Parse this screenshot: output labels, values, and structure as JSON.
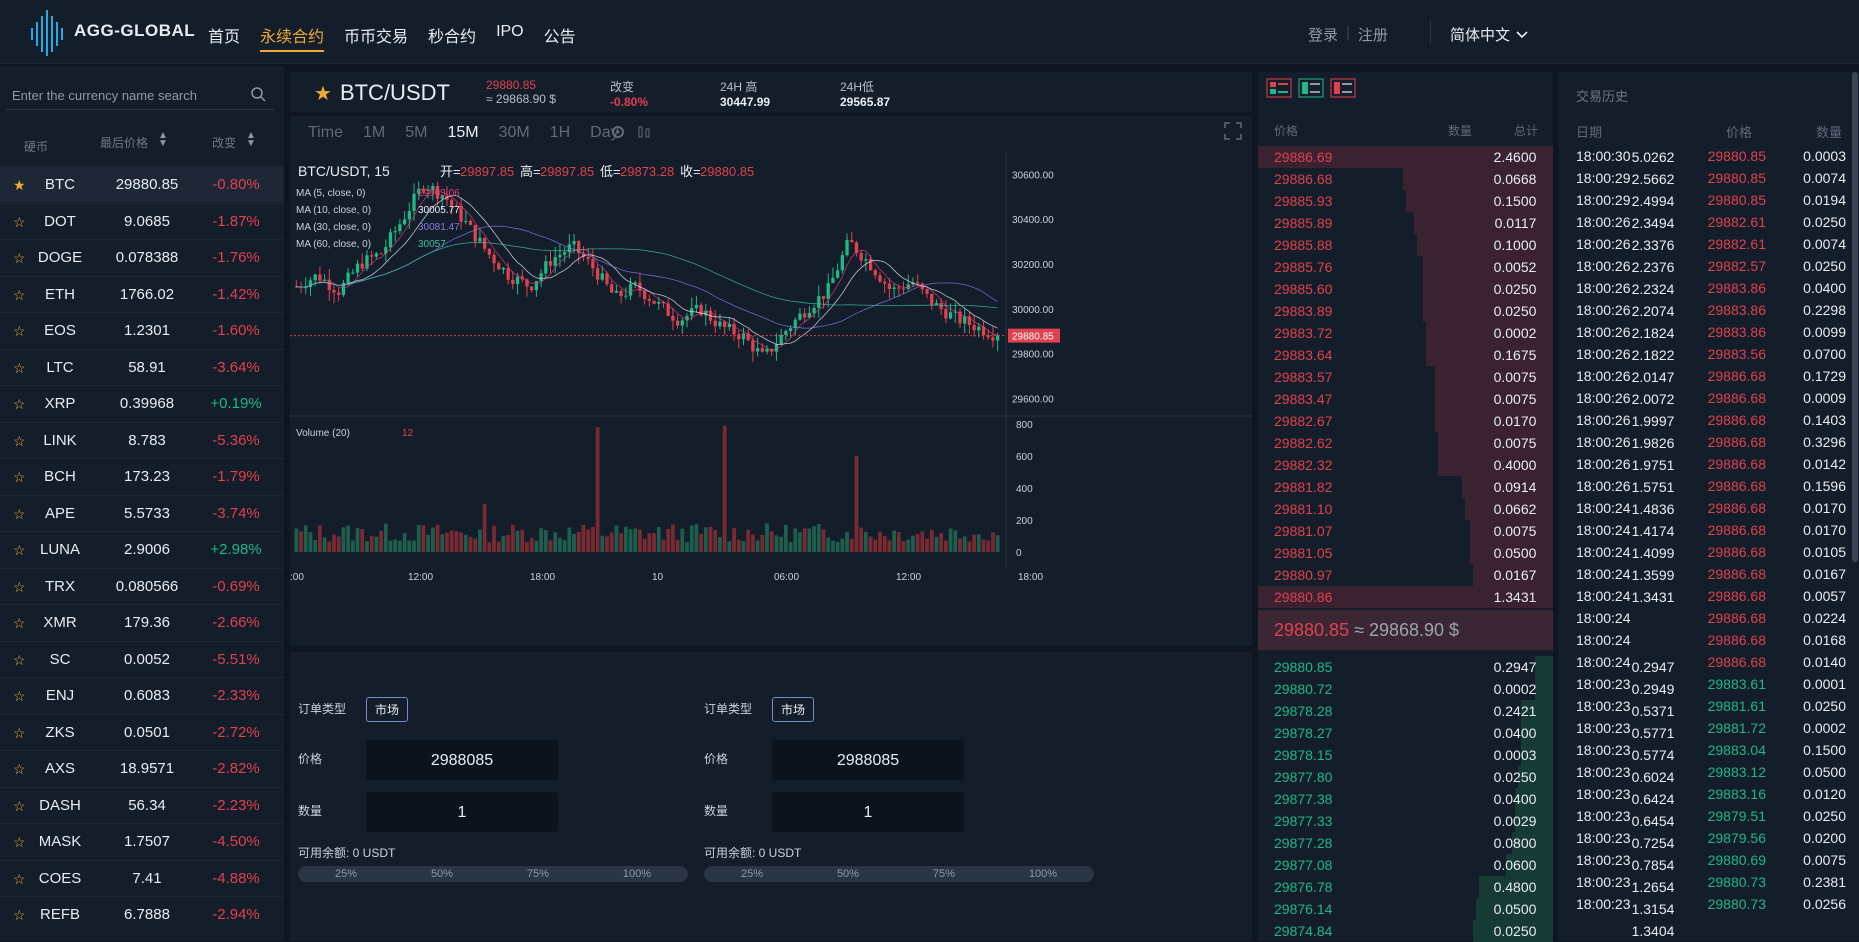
{
  "brand": {
    "name": "AGG-GLOBAL"
  },
  "nav": {
    "items": [
      "首页",
      "永续合约",
      "币币交易",
      "秒合约",
      "IPO",
      "公告"
    ],
    "active": 1
  },
  "auth": {
    "login": "登录",
    "register": "注册",
    "sep": "|"
  },
  "language": {
    "label": "简体中文"
  },
  "market": {
    "search_placeholder": "Enter the currency name search",
    "headers": {
      "coin": "硬币",
      "last_price": "最后价格",
      "change": "改变"
    },
    "rows": [
      {
        "sym": "BTC",
        "price": "29880.85",
        "change": "-0.80%"
      },
      {
        "sym": "DOT",
        "price": "9.0685",
        "change": "-1.87%"
      },
      {
        "sym": "DOGE",
        "price": "0.078388",
        "change": "-1.76%"
      },
      {
        "sym": "ETH",
        "price": "1766.02",
        "change": "-1.42%"
      },
      {
        "sym": "EOS",
        "price": "1.2301",
        "change": "-1.60%"
      },
      {
        "sym": "LTC",
        "price": "58.91",
        "change": "-3.64%"
      },
      {
        "sym": "XRP",
        "price": "0.39968",
        "change": "+0.19%"
      },
      {
        "sym": "LINK",
        "price": "8.783",
        "change": "-5.36%"
      },
      {
        "sym": "BCH",
        "price": "173.23",
        "change": "-1.79%"
      },
      {
        "sym": "APE",
        "price": "5.5733",
        "change": "-3.74%"
      },
      {
        "sym": "LUNA",
        "price": "2.9006",
        "change": "+2.98%"
      },
      {
        "sym": "TRX",
        "price": "0.080566",
        "change": "-0.69%"
      },
      {
        "sym": "XMR",
        "price": "179.36",
        "change": "-2.66%"
      },
      {
        "sym": "SC",
        "price": "0.0052",
        "change": "-5.51%"
      },
      {
        "sym": "ENJ",
        "price": "0.6083",
        "change": "-2.33%"
      },
      {
        "sym": "ZKS",
        "price": "0.0501",
        "change": "-2.72%"
      },
      {
        "sym": "AXS",
        "price": "18.9571",
        "change": "-2.82%"
      },
      {
        "sym": "DASH",
        "price": "56.34",
        "change": "-2.23%"
      },
      {
        "sym": "MASK",
        "price": "1.7507",
        "change": "-4.50%"
      },
      {
        "sym": "COES",
        "price": "7.41",
        "change": "-4.88%"
      },
      {
        "sym": "REFB",
        "price": "6.7888",
        "change": "-2.94%"
      }
    ]
  },
  "ticker": {
    "pair": "BTC/USDT",
    "last": "29880.85",
    "last_usd": "≈ 29868.90 $",
    "change_label": "改变",
    "change": "-0.80%",
    "high_label": "24H 高",
    "high": "30447.99",
    "low_label": "24H低",
    "low": "29565.87"
  },
  "chart": {
    "timeframes": [
      "Time",
      "1M",
      "5M",
      "15M",
      "30M",
      "1H",
      "Day"
    ],
    "active_tf": "15M",
    "legend_title": "BTC/USDT, 15",
    "ohlc": {
      "o_label": "开=",
      "o": "29897.85",
      "h_label": "高=",
      "h": "29897.85",
      "l_label": "低=",
      "l": "29873.28",
      "c_label": "收=",
      "c": "29880.85"
    },
    "ma": [
      {
        "label": "MA (5, close, 0)",
        "value": "29963.06",
        "color": "#e0417a"
      },
      {
        "label": "MA (10, close, 0)",
        "value": "30005.77",
        "color": "#e8edf3"
      },
      {
        "label": "MA (30, close, 0)",
        "value": "30081.47",
        "color": "#8c7ae6"
      },
      {
        "label": "MA (60, close, 0)",
        "value": "30057.",
        "color": "#3fbfa8"
      }
    ],
    "price_ticks": [
      "30600.00",
      "30400.00",
      "30200.00",
      "30000.00",
      "29800.00",
      "29600.00"
    ],
    "last_tag": "29880.85",
    "volume_label": "Volume (20)",
    "volume_value": "12",
    "volume_ticks": [
      "800",
      "600",
      "400",
      "200",
      "0"
    ],
    "time_ticks": [
      ":00",
      "12:00",
      "18:00",
      "10",
      "06:00",
      "12:00",
      "18:00"
    ]
  },
  "chart_data": {
    "type": "candlestick",
    "title": "BTC/USDT, 15",
    "ylim": [
      29540,
      30700
    ],
    "last_price": 29880.85,
    "volume_ylim": [
      0,
      800
    ]
  },
  "order": {
    "left": {
      "type_label": "订单类型",
      "type": "市场",
      "price_label": "价格",
      "price": "2988085",
      "qty_label": "数量",
      "qty": "1",
      "balance": "可用余额: 0 USDT"
    },
    "right": {
      "type_label": "订单类型",
      "type": "市场",
      "price_label": "价格",
      "price": "2988085",
      "qty_label": "数量",
      "qty": "1",
      "balance": "可用余额: 0 USDT"
    },
    "pcts": [
      "25%",
      "50%",
      "75%",
      "100%"
    ]
  },
  "book": {
    "headers": {
      "price": "价格",
      "qty": "数量",
      "total": "总计"
    },
    "asks": [
      {
        "p": "29886.69",
        "q": "2.4600",
        "t": "5.0262",
        "d": 1.0
      },
      {
        "p": "29886.68",
        "q": "0.0668",
        "t": "2.5662",
        "d": 0.51
      },
      {
        "p": "29885.93",
        "q": "0.1500",
        "t": "2.4994",
        "d": 0.5
      },
      {
        "p": "29885.89",
        "q": "0.0117",
        "t": "2.3494",
        "d": 0.47
      },
      {
        "p": "29885.88",
        "q": "0.1000",
        "t": "2.3376",
        "d": 0.46
      },
      {
        "p": "29885.76",
        "q": "0.0052",
        "t": "2.2376",
        "d": 0.44
      },
      {
        "p": "29885.60",
        "q": "0.0250",
        "t": "2.2324",
        "d": 0.44
      },
      {
        "p": "29883.89",
        "q": "0.0250",
        "t": "2.2074",
        "d": 0.44
      },
      {
        "p": "29883.72",
        "q": "0.0002",
        "t": "2.1824",
        "d": 0.43
      },
      {
        "p": "29883.64",
        "q": "0.1675",
        "t": "2.1822",
        "d": 0.43
      },
      {
        "p": "29883.57",
        "q": "0.0075",
        "t": "2.0147",
        "d": 0.4
      },
      {
        "p": "29883.47",
        "q": "0.0075",
        "t": "2.0072",
        "d": 0.4
      },
      {
        "p": "29882.67",
        "q": "0.0170",
        "t": "1.9997",
        "d": 0.4
      },
      {
        "p": "29882.62",
        "q": "0.0075",
        "t": "1.9826",
        "d": 0.39
      },
      {
        "p": "29882.32",
        "q": "0.4000",
        "t": "1.9751",
        "d": 0.39
      },
      {
        "p": "29881.82",
        "q": "0.0914",
        "t": "1.5751",
        "d": 0.31
      },
      {
        "p": "29881.10",
        "q": "0.0662",
        "t": "1.4836",
        "d": 0.3
      },
      {
        "p": "29881.07",
        "q": "0.0075",
        "t": "1.4174",
        "d": 0.28
      },
      {
        "p": "29881.05",
        "q": "0.0500",
        "t": "1.4099",
        "d": 0.28
      },
      {
        "p": "29880.97",
        "q": "0.0167",
        "t": "1.3599",
        "d": 0.27
      },
      {
        "p": "29880.86",
        "q": "1.3431",
        "t": "1.3431",
        "d": 1.0
      }
    ],
    "mid_price": "29880.85",
    "mid_usd": "≈ 29868.90 $",
    "bids": [
      {
        "p": "29880.85",
        "q": "0.2947",
        "t": "0.2947",
        "d": 0.06
      },
      {
        "p": "29880.72",
        "q": "0.0002",
        "t": "0.2949",
        "d": 0.06
      },
      {
        "p": "29878.28",
        "q": "0.2421",
        "t": "0.5371",
        "d": 0.11
      },
      {
        "p": "29878.27",
        "q": "0.0400",
        "t": "0.5771",
        "d": 0.11
      },
      {
        "p": "29878.15",
        "q": "0.0003",
        "t": "0.5774",
        "d": 0.11
      },
      {
        "p": "29877.80",
        "q": "0.0250",
        "t": "0.6024",
        "d": 0.12
      },
      {
        "p": "29877.38",
        "q": "0.0400",
        "t": "0.6424",
        "d": 0.13
      },
      {
        "p": "29877.33",
        "q": "0.0029",
        "t": "0.6454",
        "d": 0.13
      },
      {
        "p": "29877.28",
        "q": "0.0800",
        "t": "0.7254",
        "d": 0.14
      },
      {
        "p": "29877.08",
        "q": "0.0600",
        "t": "0.7854",
        "d": 0.16
      },
      {
        "p": "29876.78",
        "q": "0.4800",
        "t": "1.2654",
        "d": 0.25
      },
      {
        "p": "29876.14",
        "q": "0.0500",
        "t": "1.3154",
        "d": 0.26
      },
      {
        "p": "29874.84",
        "q": "0.0250",
        "t": "1.3404",
        "d": 0.27
      }
    ]
  },
  "trades": {
    "title": "交易历史",
    "headers": {
      "date": "日期",
      "price": "价格",
      "qty": "数量"
    },
    "rows": [
      {
        "t": "18:00:30",
        "p": "29880.85",
        "q": "0.0003",
        "s": "sell"
      },
      {
        "t": "18:00:29",
        "p": "29880.85",
        "q": "0.0074",
        "s": "sell"
      },
      {
        "t": "18:00:29",
        "p": "29880.85",
        "q": "0.0194",
        "s": "sell"
      },
      {
        "t": "18:00:26",
        "p": "29882.61",
        "q": "0.0250",
        "s": "sell"
      },
      {
        "t": "18:00:26",
        "p": "29882.61",
        "q": "0.0074",
        "s": "sell"
      },
      {
        "t": "18:00:26",
        "p": "29882.57",
        "q": "0.0250",
        "s": "sell"
      },
      {
        "t": "18:00:26",
        "p": "29883.86",
        "q": "0.0400",
        "s": "sell"
      },
      {
        "t": "18:00:26",
        "p": "29883.86",
        "q": "0.2298",
        "s": "sell"
      },
      {
        "t": "18:00:26",
        "p": "29883.86",
        "q": "0.0099",
        "s": "sell"
      },
      {
        "t": "18:00:26",
        "p": "29883.56",
        "q": "0.0700",
        "s": "sell"
      },
      {
        "t": "18:00:26",
        "p": "29886.68",
        "q": "0.1729",
        "s": "sell"
      },
      {
        "t": "18:00:26",
        "p": "29886.68",
        "q": "0.0009",
        "s": "sell"
      },
      {
        "t": "18:00:26",
        "p": "29886.68",
        "q": "0.1403",
        "s": "sell"
      },
      {
        "t": "18:00:26",
        "p": "29886.68",
        "q": "0.3296",
        "s": "sell"
      },
      {
        "t": "18:00:26",
        "p": "29886.68",
        "q": "0.0142",
        "s": "sell"
      },
      {
        "t": "18:00:26",
        "p": "29886.68",
        "q": "0.1596",
        "s": "sell"
      },
      {
        "t": "18:00:24",
        "p": "29886.68",
        "q": "0.0170",
        "s": "sell"
      },
      {
        "t": "18:00:24",
        "p": "29886.68",
        "q": "0.0170",
        "s": "sell"
      },
      {
        "t": "18:00:24",
        "p": "29886.68",
        "q": "0.0105",
        "s": "sell"
      },
      {
        "t": "18:00:24",
        "p": "29886.68",
        "q": "0.0167",
        "s": "sell"
      },
      {
        "t": "18:00:24",
        "p": "29886.68",
        "q": "0.0057",
        "s": "sell"
      },
      {
        "t": "18:00:24",
        "p": "29886.68",
        "q": "0.0224",
        "s": "sell"
      },
      {
        "t": "18:00:24",
        "p": "29886.68",
        "q": "0.0168",
        "s": "sell"
      },
      {
        "t": "18:00:24",
        "p": "29886.68",
        "q": "0.0140",
        "s": "sell"
      },
      {
        "t": "18:00:23",
        "p": "29883.61",
        "q": "0.0001",
        "s": "buy"
      },
      {
        "t": "18:00:23",
        "p": "29881.61",
        "q": "0.0250",
        "s": "buy"
      },
      {
        "t": "18:00:23",
        "p": "29881.72",
        "q": "0.0002",
        "s": "buy"
      },
      {
        "t": "18:00:23",
        "p": "29883.04",
        "q": "0.1500",
        "s": "buy"
      },
      {
        "t": "18:00:23",
        "p": "29883.12",
        "q": "0.0500",
        "s": "buy"
      },
      {
        "t": "18:00:23",
        "p": "29883.16",
        "q": "0.0120",
        "s": "buy"
      },
      {
        "t": "18:00:23",
        "p": "29879.51",
        "q": "0.0250",
        "s": "buy"
      },
      {
        "t": "18:00:23",
        "p": "29879.56",
        "q": "0.0200",
        "s": "buy"
      },
      {
        "t": "18:00:23",
        "p": "29880.69",
        "q": "0.0075",
        "s": "buy"
      },
      {
        "t": "18:00:23",
        "p": "29880.73",
        "q": "0.2381",
        "s": "buy"
      },
      {
        "t": "18:00:23",
        "p": "29880.73",
        "q": "0.0256",
        "s": "buy"
      }
    ]
  },
  "colors": {
    "up": "#1fb886",
    "down": "#e0414f",
    "accent": "#f0a935",
    "bg": "#0f1621",
    "panel": "#141d2a"
  }
}
